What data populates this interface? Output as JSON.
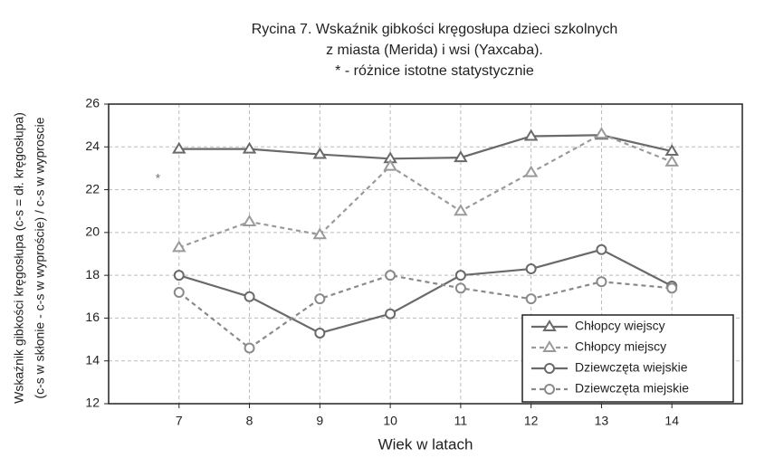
{
  "chart_data": {
    "type": "line",
    "title": [
      "Rycina 7. Wskaźnik gibkości kręgosłupa dzieci szkolnych",
      "z miasta (Merida) i  wsi (Yaxcaba).",
      "* - różnice istotne statystycznie"
    ],
    "y_label": [
      "Wskaźnik gibkości kręgosłupa (c-s = dł. kręgosłupa)",
      "(c-s w skłonie - c-s w wyproście) / c-s w wyproscie"
    ],
    "x_label": "Wiek w latach",
    "annotations": [
      {
        "text": "*",
        "x": 6.7,
        "y": 22.5
      }
    ],
    "x": [
      7,
      8,
      9,
      10,
      11,
      12,
      13,
      14
    ],
    "xlim": [
      6,
      15
    ],
    "xticks": [
      7,
      8,
      9,
      10,
      11,
      12,
      13,
      14
    ],
    "ylim": [
      12,
      26
    ],
    "yticks": [
      12,
      14,
      16,
      18,
      20,
      22,
      24,
      26
    ],
    "grid": true,
    "legend": "lower right",
    "series": [
      {
        "name": "Chłopcy wiejscy",
        "color": "#6a6a6a",
        "marker": "triangle",
        "dashed": false,
        "values": [
          23.9,
          23.9,
          23.65,
          23.45,
          23.5,
          24.5,
          24.55,
          23.8
        ]
      },
      {
        "name": "Chłopcy miejscy",
        "color": "#9a9a9a",
        "marker": "triangle",
        "dashed": true,
        "values": [
          19.3,
          20.5,
          19.9,
          23.1,
          21.0,
          22.8,
          24.6,
          23.3
        ]
      },
      {
        "name": "Dziewczęta wiejskie",
        "color": "#6a6a6a",
        "marker": "circle",
        "dashed": false,
        "values": [
          18.0,
          17.0,
          15.3,
          16.2,
          18.0,
          18.3,
          19.2,
          17.5
        ]
      },
      {
        "name": "Dziewczęta miejskie",
        "color": "#8a8a8a",
        "marker": "circle",
        "dashed": true,
        "values": [
          17.2,
          14.6,
          16.9,
          18.0,
          17.4,
          16.9,
          17.7,
          17.4
        ]
      }
    ]
  }
}
